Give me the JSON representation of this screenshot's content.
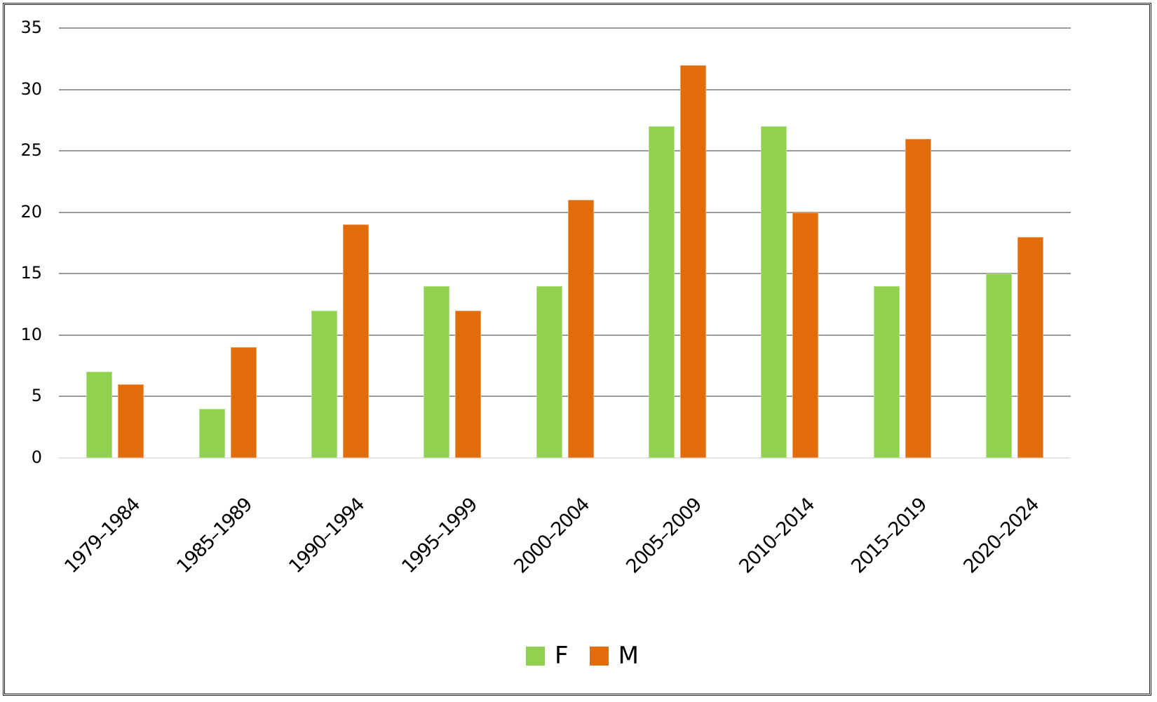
{
  "chart_data": {
    "type": "bar",
    "title": "",
    "xlabel": "",
    "ylabel": "",
    "ylim": [
      0,
      35
    ],
    "yticks": [
      0,
      5,
      10,
      15,
      20,
      25,
      30,
      35
    ],
    "grid": true,
    "legend_position": "bottom",
    "categories": [
      "1979–1984",
      "1985–1989",
      "1990–1994",
      "1995–1999",
      "2000–2004",
      "2005–2009",
      "2010–2014",
      "2015–2019",
      "2020–2024"
    ],
    "series": [
      {
        "name": "F",
        "color": "#92d050",
        "values": [
          7,
          4,
          12,
          14,
          14,
          27,
          27,
          14,
          15
        ]
      },
      {
        "name": "M",
        "color": "#e36c0a",
        "values": [
          6,
          9,
          19,
          12,
          21,
          32,
          20,
          26,
          18
        ]
      }
    ]
  },
  "legend": {
    "items": [
      {
        "label": "F",
        "color": "#92d050"
      },
      {
        "label": "M",
        "color": "#e36c0a"
      }
    ]
  }
}
